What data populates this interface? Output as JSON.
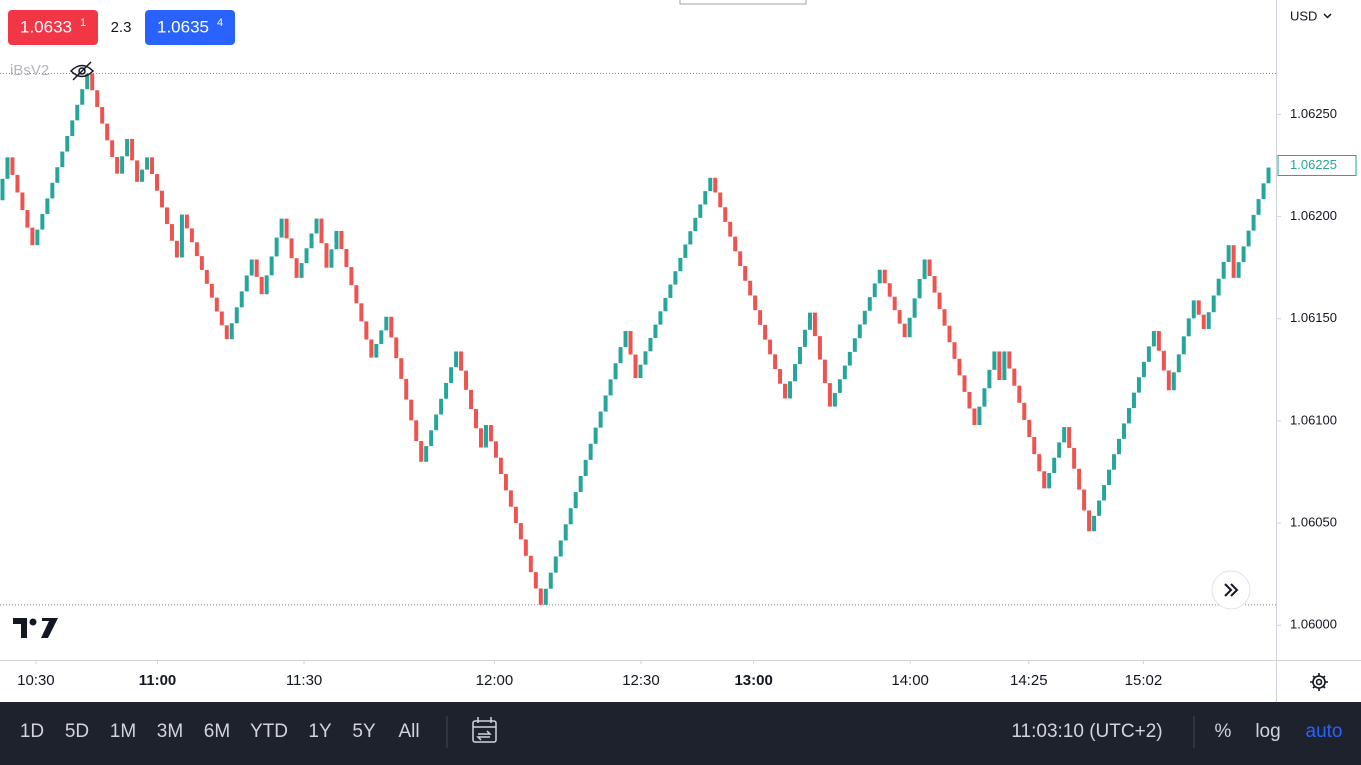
{
  "chart_data": {
    "type": "renko",
    "x": [
      0,
      2,
      7,
      18,
      24,
      26,
      28,
      30,
      36,
      37,
      46,
      51,
      53,
      57,
      60,
      64,
      66,
      68,
      75,
      78,
      85,
      92,
      97,
      98,
      109,
      126,
      128,
      143,
      158,
      163,
      167,
      177,
      182,
      186,
      196,
      200,
      201,
      202,
      210,
      214,
      219,
      232,
      235,
      240,
      242,
      247,
      248,
      255
    ],
    "values": [
      1.06208,
      1.06229,
      1.06186,
      1.0627,
      1.06221,
      1.06238,
      1.06217,
      1.06229,
      1.0618,
      1.06201,
      1.0614,
      1.06179,
      1.06162,
      1.06199,
      1.0617,
      1.06199,
      1.06175,
      1.06193,
      1.06131,
      1.06151,
      1.0608,
      1.06134,
      1.06087,
      1.06098,
      1.0601,
      1.06144,
      1.06121,
      1.06219,
      1.06111,
      1.06153,
      1.06107,
      1.06174,
      1.06141,
      1.06179,
      1.06098,
      1.06134,
      1.0612,
      1.06134,
      1.06067,
      1.06097,
      1.06046,
      1.06144,
      1.06115,
      1.06159,
      1.06145,
      1.06186,
      1.0617,
      1.06224
    ],
    "up_color": "#26a69a",
    "down_color": "#ef5350",
    "xlim": [
      0,
      256
    ],
    "xticks": [
      {
        "value": 7.2,
        "label": "10:30"
      },
      {
        "value": 31.6,
        "label": "11:00"
      },
      {
        "value": 61,
        "label": "11:30"
      },
      {
        "value": 99.2,
        "label": "12:00"
      },
      {
        "value": 128.6,
        "label": "12:30"
      },
      {
        "value": 151.2,
        "label": "13:00"
      },
      {
        "value": 182.6,
        "label": "14:00"
      },
      {
        "value": 206.4,
        "label": "14:25"
      },
      {
        "value": 229.4,
        "label": "15:02"
      }
    ],
    "ylim": [
      1.05983,
      1.06306
    ],
    "yticks": [
      {
        "value": 1.06,
        "label": "1.06000"
      },
      {
        "value": 1.0605,
        "label": "1.06050"
      },
      {
        "value": 1.061,
        "label": "1.06100"
      },
      {
        "value": 1.0615,
        "label": "1.06150"
      },
      {
        "value": 1.062,
        "label": "1.06200"
      },
      {
        "value": 1.0625,
        "label": "1.06250"
      }
    ],
    "last_price": 1.06225,
    "currency": "USD",
    "indicator": "iBsV2"
  },
  "ui": {
    "sell": {
      "main": "1.0633",
      "small": "1"
    },
    "spread": "2.3",
    "buy": {
      "main": "1.0635",
      "small": "4"
    },
    "ranges": [
      "1D",
      "5D",
      "1M",
      "3M",
      "6M",
      "YTD",
      "1Y",
      "5Y",
      "All"
    ],
    "clock": "11:03:10 (UTC+2)",
    "percent": "%",
    "log": "log",
    "auto": "auto"
  }
}
